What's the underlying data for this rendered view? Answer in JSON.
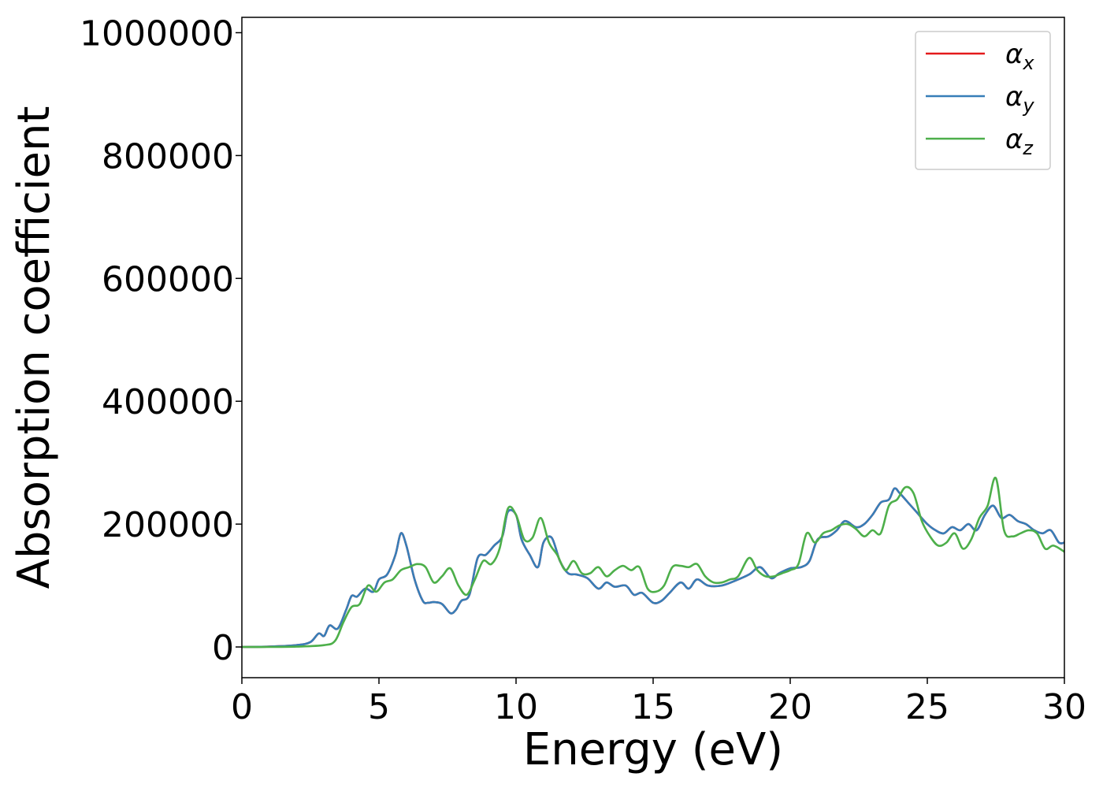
{
  "chart_data": {
    "type": "line",
    "title": "",
    "xlabel": "Energy (eV)",
    "ylabel": "Absorption coefficient",
    "xlim": [
      0,
      30
    ],
    "ylim": [
      -50000,
      1025000
    ],
    "xticks": [
      0,
      5,
      10,
      15,
      20,
      25,
      30
    ],
    "yticks": [
      0,
      200000,
      400000,
      600000,
      800000,
      1000000
    ],
    "xtick_labels": [
      "0",
      "5",
      "10",
      "15",
      "20",
      "25",
      "30"
    ],
    "ytick_labels": [
      "0",
      "200000",
      "400000",
      "600000",
      "800000",
      "1000000"
    ],
    "grid": false,
    "legend_position": "top-right",
    "series": [
      {
        "name": "α",
        "subscript": "x",
        "color": "#e41a1c",
        "x": [
          0,
          1,
          2,
          2.5,
          2.8,
          3.0,
          3.2,
          3.5,
          3.8,
          4.0,
          4.2,
          4.5,
          4.8,
          5.0,
          5.3,
          5.6,
          5.8,
          6.0,
          6.3,
          6.6,
          6.8,
          7.0,
          7.3,
          7.6,
          7.8,
          8.0,
          8.3,
          8.6,
          8.9,
          9.2,
          9.5,
          9.7,
          10.0,
          10.2,
          10.5,
          10.8,
          11.0,
          11.3,
          11.6,
          11.9,
          12.2,
          12.6,
          13.0,
          13.3,
          13.6,
          14.0,
          14.3,
          14.6,
          15.0,
          15.3,
          15.6,
          16.0,
          16.3,
          16.6,
          17.0,
          17.5,
          18.0,
          18.5,
          18.9,
          19.3,
          19.6,
          20.0,
          20.4,
          20.7,
          21.0,
          21.4,
          21.7,
          22.0,
          22.4,
          22.7,
          23.0,
          23.3,
          23.6,
          23.8,
          24.0,
          24.3,
          24.6,
          25.0,
          25.3,
          25.6,
          25.9,
          26.2,
          26.5,
          26.8,
          27.1,
          27.4,
          27.7,
          28.0,
          28.3,
          28.6,
          28.9,
          29.2,
          29.5,
          29.8,
          30
        ],
        "y": [
          0,
          500,
          3000,
          8000,
          22000,
          18000,
          35000,
          30000,
          60000,
          83000,
          82000,
          95000,
          90000,
          110000,
          118000,
          150000,
          185000,
          165000,
          110000,
          75000,
          72000,
          73000,
          70000,
          55000,
          60000,
          75000,
          85000,
          145000,
          150000,
          165000,
          180000,
          220000,
          215000,
          175000,
          150000,
          130000,
          170000,
          178000,
          140000,
          120000,
          118000,
          112000,
          95000,
          105000,
          98000,
          100000,
          85000,
          88000,
          72000,
          75000,
          88000,
          105000,
          95000,
          110000,
          100000,
          100000,
          108000,
          118000,
          130000,
          112000,
          120000,
          128000,
          130000,
          140000,
          175000,
          180000,
          190000,
          205000,
          195000,
          200000,
          215000,
          235000,
          240000,
          258000,
          250000,
          235000,
          220000,
          200000,
          190000,
          185000,
          195000,
          190000,
          200000,
          190000,
          215000,
          230000,
          210000,
          215000,
          205000,
          200000,
          190000,
          185000,
          190000,
          170000,
          170000
        ]
      },
      {
        "name": "α",
        "subscript": "y",
        "color": "#377eb8",
        "x": [
          0,
          1,
          2,
          2.5,
          2.8,
          3.0,
          3.2,
          3.5,
          3.8,
          4.0,
          4.2,
          4.5,
          4.8,
          5.0,
          5.3,
          5.6,
          5.8,
          6.0,
          6.3,
          6.6,
          6.8,
          7.0,
          7.3,
          7.6,
          7.8,
          8.0,
          8.3,
          8.6,
          8.9,
          9.2,
          9.5,
          9.7,
          10.0,
          10.2,
          10.5,
          10.8,
          11.0,
          11.3,
          11.6,
          11.9,
          12.2,
          12.6,
          13.0,
          13.3,
          13.6,
          14.0,
          14.3,
          14.6,
          15.0,
          15.3,
          15.6,
          16.0,
          16.3,
          16.6,
          17.0,
          17.5,
          18.0,
          18.5,
          18.9,
          19.3,
          19.6,
          20.0,
          20.4,
          20.7,
          21.0,
          21.4,
          21.7,
          22.0,
          22.4,
          22.7,
          23.0,
          23.3,
          23.6,
          23.8,
          24.0,
          24.3,
          24.6,
          25.0,
          25.3,
          25.6,
          25.9,
          26.2,
          26.5,
          26.8,
          27.1,
          27.4,
          27.7,
          28.0,
          28.3,
          28.6,
          28.9,
          29.2,
          29.5,
          29.8,
          30
        ],
        "y": [
          0,
          500,
          3000,
          8000,
          22000,
          18000,
          35000,
          30000,
          60000,
          83000,
          82000,
          95000,
          90000,
          110000,
          118000,
          150000,
          185000,
          165000,
          110000,
          75000,
          72000,
          73000,
          70000,
          55000,
          60000,
          75000,
          85000,
          145000,
          150000,
          165000,
          180000,
          220000,
          215000,
          175000,
          150000,
          130000,
          170000,
          178000,
          140000,
          120000,
          118000,
          112000,
          95000,
          105000,
          98000,
          100000,
          85000,
          88000,
          72000,
          75000,
          88000,
          105000,
          95000,
          110000,
          100000,
          100000,
          108000,
          118000,
          130000,
          112000,
          120000,
          128000,
          130000,
          140000,
          175000,
          180000,
          190000,
          205000,
          195000,
          200000,
          215000,
          235000,
          240000,
          258000,
          250000,
          235000,
          220000,
          200000,
          190000,
          185000,
          195000,
          190000,
          200000,
          190000,
          215000,
          230000,
          210000,
          215000,
          205000,
          200000,
          190000,
          185000,
          190000,
          170000,
          170000
        ]
      },
      {
        "name": "α",
        "subscript": "z",
        "color": "#4daf4a",
        "x": [
          0,
          1,
          2,
          3.0,
          3.4,
          3.7,
          4.0,
          4.3,
          4.6,
          4.9,
          5.2,
          5.5,
          5.8,
          6.1,
          6.4,
          6.7,
          7.0,
          7.3,
          7.6,
          7.9,
          8.2,
          8.5,
          8.8,
          9.1,
          9.4,
          9.7,
          10.0,
          10.3,
          10.6,
          10.9,
          11.2,
          11.5,
          11.8,
          12.1,
          12.4,
          12.7,
          13.0,
          13.3,
          13.6,
          13.9,
          14.2,
          14.5,
          14.8,
          15.1,
          15.4,
          15.7,
          16.0,
          16.3,
          16.6,
          16.9,
          17.2,
          17.5,
          17.8,
          18.1,
          18.5,
          18.8,
          19.1,
          19.4,
          19.7,
          20.0,
          20.3,
          20.6,
          20.9,
          21.2,
          21.5,
          21.8,
          22.1,
          22.4,
          22.7,
          23.0,
          23.3,
          23.6,
          23.9,
          24.2,
          24.5,
          24.8,
          25.1,
          25.4,
          25.7,
          26.0,
          26.3,
          26.6,
          26.9,
          27.2,
          27.5,
          27.8,
          28.1,
          28.4,
          28.7,
          29.0,
          29.3,
          29.6,
          30
        ],
        "y": [
          0,
          0,
          500,
          3000,
          10000,
          40000,
          65000,
          70000,
          100000,
          90000,
          105000,
          110000,
          125000,
          130000,
          135000,
          130000,
          105000,
          115000,
          128000,
          100000,
          85000,
          110000,
          140000,
          135000,
          160000,
          225000,
          215000,
          175000,
          178000,
          210000,
          170000,
          150000,
          125000,
          140000,
          120000,
          120000,
          130000,
          115000,
          125000,
          132000,
          125000,
          130000,
          95000,
          90000,
          100000,
          130000,
          132000,
          130000,
          135000,
          115000,
          105000,
          105000,
          110000,
          115000,
          145000,
          125000,
          115000,
          115000,
          120000,
          125000,
          135000,
          185000,
          170000,
          185000,
          190000,
          198000,
          200000,
          192000,
          180000,
          190000,
          185000,
          230000,
          240000,
          260000,
          250000,
          205000,
          180000,
          165000,
          170000,
          185000,
          160000,
          175000,
          210000,
          230000,
          275000,
          190000,
          180000,
          185000,
          190000,
          185000,
          160000,
          165000,
          155000
        ]
      }
    ]
  }
}
